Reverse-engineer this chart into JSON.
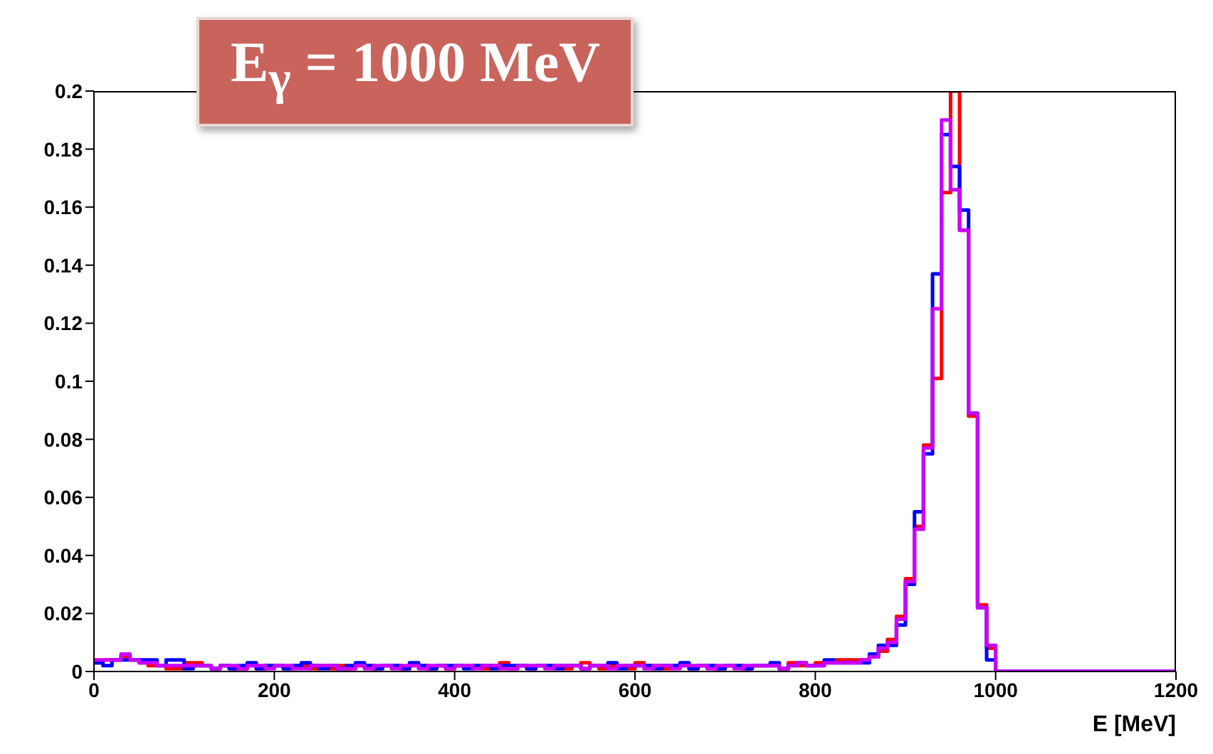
{
  "chart_data": {
    "type": "histogram",
    "title": "E$_{γ}$ = 1000 MeV",
    "xlabel": "E [MeV]",
    "bins": [
      0,
      10,
      20,
      30,
      40,
      50,
      60,
      70,
      80,
      90,
      100,
      110,
      120,
      130,
      140,
      150,
      160,
      170,
      180,
      190,
      200,
      210,
      220,
      230,
      240,
      250,
      260,
      270,
      280,
      290,
      300,
      310,
      320,
      330,
      340,
      350,
      360,
      370,
      380,
      390,
      400,
      410,
      420,
      430,
      440,
      450,
      460,
      470,
      480,
      490,
      500,
      510,
      520,
      530,
      540,
      550,
      560,
      570,
      580,
      590,
      600,
      610,
      620,
      630,
      640,
      650,
      660,
      670,
      680,
      690,
      700,
      710,
      720,
      730,
      740,
      750,
      760,
      770,
      780,
      790,
      800,
      810,
      820,
      830,
      840,
      850,
      860,
      870,
      880,
      890,
      900,
      910,
      920,
      930,
      940,
      950,
      960,
      970,
      980,
      990,
      1000,
      1010,
      1020,
      1030,
      1040,
      1050,
      1060,
      1070,
      1080,
      1090,
      1100,
      1110,
      1120,
      1130,
      1140,
      1150,
      1160,
      1170,
      1180,
      1190,
      1200
    ],
    "series": [
      {
        "color": "#ff0000",
        "values": [
          0.003,
          0.004,
          0.004,
          0.005,
          0.004,
          0.003,
          0.002,
          0.002,
          0.001,
          0.001,
          0.003,
          0.003,
          0.002,
          0.001,
          0.002,
          0.001,
          0.001,
          0.002,
          0.001,
          0.002,
          0.002,
          0.001,
          0.002,
          0.002,
          0.001,
          0.002,
          0.001,
          0.002,
          0.001,
          0.002,
          0.002,
          0.001,
          0.002,
          0.002,
          0.001,
          0.002,
          0.002,
          0.001,
          0.002,
          0.001,
          0.002,
          0.002,
          0.002,
          0.001,
          0.002,
          0.003,
          0.001,
          0.002,
          0.001,
          0.002,
          0.002,
          0.002,
          0.001,
          0.002,
          0.003,
          0.002,
          0.001,
          0.002,
          0.002,
          0.001,
          0.003,
          0.002,
          0.002,
          0.001,
          0.002,
          0.002,
          0.001,
          0.002,
          0.002,
          0.001,
          0.002,
          0.002,
          0.001,
          0.002,
          0.002,
          0.002,
          0.001,
          0.003,
          0.002,
          0.002,
          0.003,
          0.003,
          0.004,
          0.004,
          0.004,
          0.004,
          0.005,
          0.007,
          0.011,
          0.019,
          0.032,
          0.05,
          0.078,
          0.101,
          0.165,
          0.2,
          0.152,
          0.088,
          0.023,
          0.008,
          0,
          0,
          0,
          0,
          0,
          0,
          0,
          0,
          0,
          0,
          0,
          0,
          0,
          0,
          0,
          0,
          0,
          0,
          0,
          0
        ]
      },
      {
        "color": "#0000ff",
        "values": [
          0.003,
          0.002,
          0.004,
          0.004,
          0.004,
          0.004,
          0.004,
          0.002,
          0.004,
          0.004,
          0.001,
          0.002,
          0.002,
          0.001,
          0.002,
          0.001,
          0.002,
          0.003,
          0.001,
          0.002,
          0.002,
          0.001,
          0.002,
          0.003,
          0.002,
          0.001,
          0.002,
          0.001,
          0.002,
          0.003,
          0.002,
          0.001,
          0.002,
          0.002,
          0.001,
          0.003,
          0.002,
          0.001,
          0.002,
          0.002,
          0.002,
          0.001,
          0.002,
          0.002,
          0.001,
          0.002,
          0.002,
          0.002,
          0.001,
          0.002,
          0.002,
          0.001,
          0.002,
          0.002,
          0.001,
          0.002,
          0.002,
          0.003,
          0.001,
          0.002,
          0.002,
          0.002,
          0.001,
          0.002,
          0.002,
          0.003,
          0.001,
          0.002,
          0.002,
          0.001,
          0.002,
          0.002,
          0.001,
          0.002,
          0.002,
          0.003,
          0.001,
          0.002,
          0.003,
          0.002,
          0.002,
          0.004,
          0.003,
          0.003,
          0.003,
          0.003,
          0.006,
          0.009,
          0.009,
          0.016,
          0.03,
          0.055,
          0.075,
          0.137,
          0.185,
          0.174,
          0.159,
          0.089,
          0.022,
          0.004,
          0,
          0,
          0,
          0,
          0,
          0,
          0,
          0,
          0,
          0,
          0,
          0,
          0,
          0,
          0,
          0,
          0,
          0,
          0,
          0
        ]
      },
      {
        "color": "#cc00ff",
        "values": [
          0.004,
          0.004,
          0.004,
          0.006,
          0.004,
          0.003,
          0.003,
          0.002,
          0.002,
          0.002,
          0.002,
          0.002,
          0.002,
          0.001,
          0.002,
          0.002,
          0.001,
          0.002,
          0.002,
          0.001,
          0.002,
          0.002,
          0.001,
          0.001,
          0.002,
          0.002,
          0.002,
          0.001,
          0.001,
          0.002,
          0.001,
          0.002,
          0.002,
          0.001,
          0.002,
          0.002,
          0.001,
          0.002,
          0.002,
          0.001,
          0.002,
          0.002,
          0.001,
          0.002,
          0.002,
          0.001,
          0.001,
          0.002,
          0.002,
          0.002,
          0.001,
          0.002,
          0.002,
          0.002,
          0.001,
          0.002,
          0.002,
          0.001,
          0.002,
          0.002,
          0.002,
          0.001,
          0.002,
          0.002,
          0.001,
          0.002,
          0.002,
          0.002,
          0.001,
          0.002,
          0.002,
          0.001,
          0.002,
          0.002,
          0.002,
          0.002,
          0.001,
          0.002,
          0.003,
          0.002,
          0.002,
          0.003,
          0.003,
          0.003,
          0.003,
          0.004,
          0.005,
          0.008,
          0.01,
          0.018,
          0.031,
          0.049,
          0.077,
          0.125,
          0.19,
          0.166,
          0.152,
          0.089,
          0.022,
          0.009,
          0,
          0,
          0,
          0,
          0,
          0,
          0,
          0,
          0,
          0,
          0,
          0,
          0,
          0,
          0,
          0,
          0,
          0,
          0,
          0
        ]
      }
    ],
    "xlim": [
      0,
      1200
    ],
    "xticks": [
      0,
      200,
      400,
      600,
      800,
      1000,
      1200
    ],
    "ylim": [
      0,
      0.2
    ],
    "yticks": [
      0,
      0.02,
      0.04,
      0.06,
      0.08,
      0.1,
      0.12,
      0.14,
      0.16,
      0.18,
      0.2
    ],
    "grid": false,
    "legend": false
  }
}
